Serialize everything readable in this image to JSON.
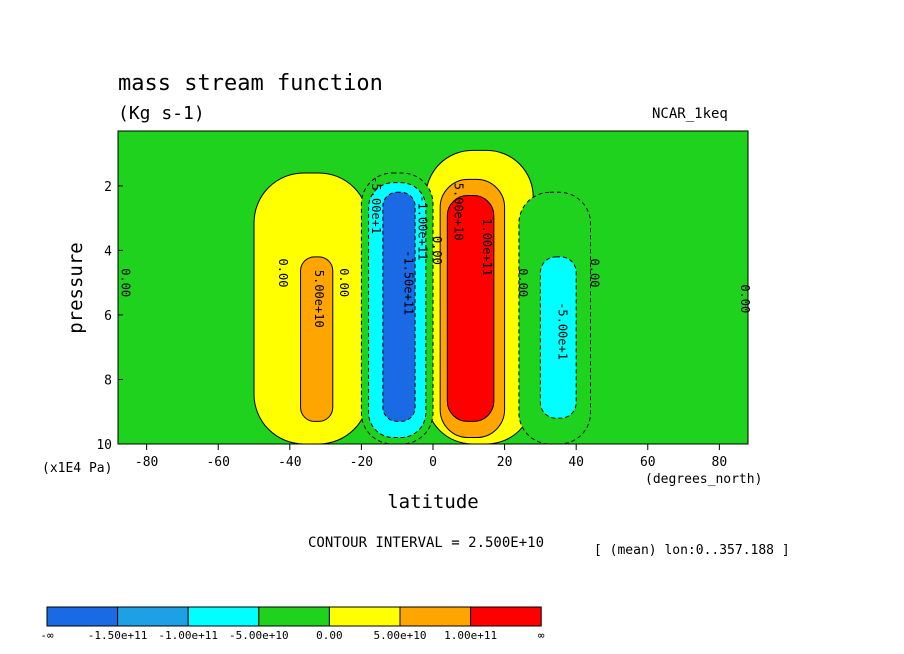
{
  "chart_data": {
    "type": "contour",
    "title": "mass stream function",
    "units": "(Kg s-1)",
    "dataset": "NCAR_1keq",
    "xlabel": "latitude",
    "x_units": "(degrees_north)",
    "ylabel": "pressure",
    "y_units": "(x1E4 Pa)",
    "xlim": [
      -88,
      88
    ],
    "ylim": [
      0.3,
      10
    ],
    "y_inverted": true,
    "x_ticks": [
      -80,
      -60,
      -40,
      -20,
      0,
      20,
      40,
      60,
      80
    ],
    "x_tick_labels": [
      "-80",
      "-60",
      "-40",
      "-20",
      "0",
      "20",
      "40",
      "60",
      "80"
    ],
    "y_ticks": [
      2,
      4,
      6,
      8,
      10
    ],
    "y_tick_labels": [
      "2",
      "4",
      "6",
      "8",
      "10"
    ],
    "contour_interval_text": "CONTOUR INTERVAL = 2.500E+10",
    "mean_text": "[ (mean) lon:0..357.188 ]",
    "contour_labels": [
      {
        "text": "0.00",
        "x": -87,
        "y": 5
      },
      {
        "text": "0.00",
        "x": -43,
        "y": 4.7
      },
      {
        "text": "5.00e+10",
        "x": -33,
        "y": 5.5
      },
      {
        "text": "0.00",
        "x": -26,
        "y": 5
      },
      {
        "text": "-5.00e+1",
        "x": -17,
        "y": 2.6
      },
      {
        "text": "-1.50e+11",
        "x": -8,
        "y": 5
      },
      {
        "text": "-1.00e+11",
        "x": -4,
        "y": 3.3
      },
      {
        "text": "0.00",
        "x": 0,
        "y": 4
      },
      {
        "text": "5.00e+10",
        "x": 6,
        "y": 2.8
      },
      {
        "text": "1.00e+11",
        "x": 14,
        "y": 3.9
      },
      {
        "text": "0.00",
        "x": 24,
        "y": 5
      },
      {
        "text": "-5.00e+1",
        "x": 35,
        "y": 6.5
      },
      {
        "text": "0.00",
        "x": 44,
        "y": 4.7
      },
      {
        "text": "0.00",
        "x": 86,
        "y": 5.5
      }
    ],
    "colorbar": {
      "colors": [
        "#1a6ae6",
        "#1ea0e6",
        "#00ffff",
        "#1ed21e",
        "#ffff00",
        "#ffa500",
        "#ff0000"
      ],
      "labels": [
        "-∞",
        "-1.50e+11",
        "-1.00e+11",
        "-5.00e+10",
        "0.00",
        "5.00e+10",
        "1.00e+11",
        "∞"
      ]
    },
    "cells": [
      {
        "x": [
          -88,
          88
        ],
        "y": [
          0.3,
          10
        ],
        "level": 0
      },
      {
        "x": [
          -50,
          -18
        ],
        "y": [
          1.6,
          10
        ],
        "level": 1
      },
      {
        "x": [
          -2,
          28
        ],
        "y": [
          0.9,
          10
        ],
        "level": 1
      },
      {
        "x": [
          -20,
          0
        ],
        "y": [
          1.6,
          10
        ],
        "level": -1
      },
      {
        "x": [
          24,
          44
        ],
        "y": [
          2.2,
          10
        ],
        "level": -1
      },
      {
        "x": [
          -37,
          -28
        ],
        "y": [
          4.2,
          9.3
        ],
        "level": 2
      },
      {
        "x": [
          2,
          20
        ],
        "y": [
          1.8,
          9.8
        ],
        "level": 2
      },
      {
        "x": [
          4,
          17
        ],
        "y": [
          2.3,
          9.3
        ],
        "level": 3
      },
      {
        "x": [
          -18,
          -2
        ],
        "y": [
          1.9,
          9.8
        ],
        "level": -2
      },
      {
        "x": [
          -14,
          -5
        ],
        "y": [
          2.2,
          9.3
        ],
        "level": -3
      },
      {
        "x": [
          30,
          40
        ],
        "y": [
          4.2,
          9.2
        ],
        "level": -2
      }
    ],
    "level_colors": {
      "-3": "#1a6ae6",
      "-2": "#00ffff",
      "-1": "#1ed21e",
      "0": "#1ed21e",
      "1": "#ffff00",
      "2": "#ffa500",
      "3": "#ff0000"
    },
    "green_background": "#1ed21e"
  }
}
